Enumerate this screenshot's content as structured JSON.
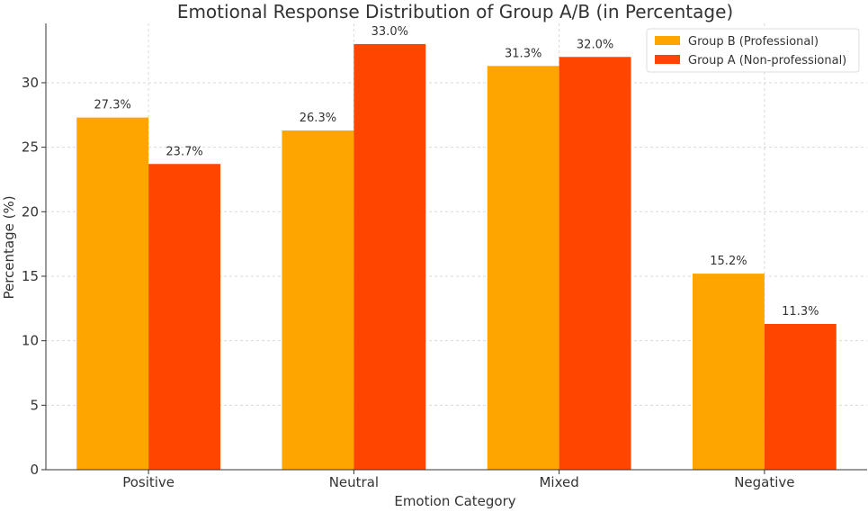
{
  "chart_data": {
    "type": "bar",
    "title": "Emotional Response Distribution of Group A/B (in Percentage)",
    "xlabel": "Emotion Category",
    "ylabel": "Percentage (%)",
    "categories": [
      "Positive",
      "Neutral",
      "Mixed",
      "Negative"
    ],
    "series": [
      {
        "name": "Group B (Professional)",
        "values": [
          27.3,
          26.3,
          31.3,
          15.2
        ],
        "color": "#FFA500",
        "labels": [
          "27.3%",
          "26.3%",
          "31.3%",
          "15.2%"
        ]
      },
      {
        "name": "Group A (Non-professional)",
        "values": [
          23.7,
          33.0,
          32.0,
          11.3
        ],
        "color": "#FF4500",
        "labels": [
          "23.7%",
          "33.0%",
          "32.0%",
          "11.3%"
        ]
      }
    ],
    "ylim": [
      0,
      34.6
    ],
    "yticks": [
      0,
      5,
      10,
      15,
      20,
      25,
      30
    ],
    "grid": true,
    "legend": "top-right"
  }
}
